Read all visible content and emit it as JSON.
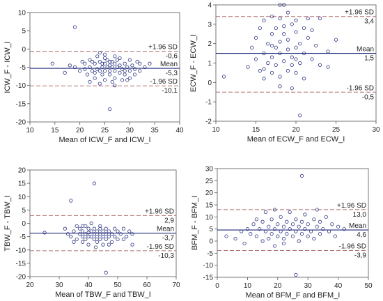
{
  "chart_data": [
    {
      "type": "scatter",
      "xlabel": "Mean of ICW_F and ICW_I",
      "ylabel": "ICW_F - ICW_I",
      "xlim": [
        10,
        40
      ],
      "ylim": [
        -20,
        10
      ],
      "xticks": [
        10,
        15,
        20,
        25,
        30,
        35,
        40
      ],
      "yticks": [
        -20,
        -15,
        -10,
        -5,
        0,
        5,
        10
      ],
      "lines": {
        "upper": -0.6,
        "mean": -5.3,
        "lower": -10.1
      },
      "line_labels": {
        "upper": "+1.96 SD",
        "upper_value": "-0,6",
        "mean": "Mean",
        "mean_value": "-5,3",
        "lower": "-1.96 SD",
        "lower_value": "-10,1"
      },
      "points": [
        [
          19,
          6
        ],
        [
          14.5,
          -4
        ],
        [
          26,
          -16.5
        ],
        [
          17,
          -6.5
        ],
        [
          18,
          -4.5
        ],
        [
          19,
          -5
        ],
        [
          20,
          -6
        ],
        [
          21,
          -4
        ],
        [
          21.5,
          -7
        ],
        [
          22,
          -5
        ],
        [
          22,
          -3
        ],
        [
          22.5,
          -6
        ],
        [
          23,
          -8
        ],
        [
          23,
          -4
        ],
        [
          23.5,
          -5.5
        ],
        [
          23.5,
          -2
        ],
        [
          24,
          -6
        ],
        [
          24,
          -3.5
        ],
        [
          24,
          -1
        ],
        [
          24.5,
          -5
        ],
        [
          24.5,
          -7
        ],
        [
          25,
          -4
        ],
        [
          25,
          -6
        ],
        [
          25,
          -8.5
        ],
        [
          25,
          -2.5
        ],
        [
          25.5,
          -5
        ],
        [
          25.5,
          -3
        ],
        [
          26,
          -6
        ],
        [
          26,
          -4.5
        ],
        [
          26,
          -7
        ],
        [
          26.5,
          -5
        ],
        [
          26.5,
          -3.5
        ],
        [
          27,
          -6
        ],
        [
          27,
          -4
        ],
        [
          27,
          -8
        ],
        [
          27,
          -10
        ],
        [
          27.5,
          -5
        ],
        [
          27.5,
          -3
        ],
        [
          28,
          -6.5
        ],
        [
          28,
          -4.5
        ],
        [
          28,
          -2.5
        ],
        [
          28.5,
          -5.5
        ],
        [
          29,
          -7
        ],
        [
          29,
          -4
        ],
        [
          29,
          -6
        ],
        [
          29.5,
          -5
        ],
        [
          30,
          -3
        ],
        [
          30,
          -6
        ],
        [
          30,
          -8
        ],
        [
          30.5,
          -4.5
        ],
        [
          31,
          -5.5
        ],
        [
          31,
          -7
        ],
        [
          32,
          -4
        ],
        [
          32,
          -6
        ],
        [
          33,
          -5
        ],
        [
          34,
          -4
        ],
        [
          22,
          -9
        ],
        [
          24,
          -9.5
        ],
        [
          26,
          -3.5
        ],
        [
          27,
          -2
        ],
        [
          28.5,
          -8.5
        ],
        [
          25,
          -1.5
        ],
        [
          23,
          -6.5
        ],
        [
          21,
          -5.5
        ],
        [
          20.5,
          -3.5
        ],
        [
          31.5,
          -3.5
        ],
        [
          29.5,
          -8.5
        ],
        [
          26.5,
          -9
        ],
        [
          24.5,
          -4
        ],
        [
          22.5,
          -3.5
        ]
      ]
    },
    {
      "type": "scatter",
      "xlabel": "Mean of ECW_F and ECW_I",
      "ylabel": "ECW_F - ECW_I",
      "xlim": [
        10,
        30
      ],
      "ylim": [
        -2,
        4
      ],
      "xticks": [
        10,
        15,
        20,
        25,
        30
      ],
      "yticks": [
        -2,
        -1,
        0,
        1,
        2,
        3,
        4
      ],
      "lines": {
        "upper": 3.4,
        "mean": 1.5,
        "lower": -0.5
      },
      "line_labels": {
        "upper": "+1.96 SD",
        "upper_value": "3,4",
        "mean": "Mean",
        "mean_value": "1,5",
        "lower": "-1.96 SD",
        "lower_value": "-0,5"
      },
      "points": [
        [
          11,
          0.3
        ],
        [
          14,
          0.8
        ],
        [
          14.5,
          1.8
        ],
        [
          15,
          1.2
        ],
        [
          15,
          2.3
        ],
        [
          15.5,
          0.6
        ],
        [
          15.5,
          2.8
        ],
        [
          16,
          1.5
        ],
        [
          16,
          3.2
        ],
        [
          16,
          0.2
        ],
        [
          16.5,
          2
        ],
        [
          16.5,
          1
        ],
        [
          17,
          2.5
        ],
        [
          17,
          1.3
        ],
        [
          17,
          0.5
        ],
        [
          17,
          3.4
        ],
        [
          17.5,
          1.8
        ],
        [
          17.5,
          2.8
        ],
        [
          17.5,
          0.9
        ],
        [
          18,
          3.3
        ],
        [
          18,
          2.1
        ],
        [
          18,
          1.5
        ],
        [
          18,
          0.3
        ],
        [
          18,
          -0.2
        ],
        [
          18.5,
          4
        ],
        [
          18.5,
          2.5
        ],
        [
          18.5,
          1.1
        ],
        [
          18.5,
          2.9
        ],
        [
          19,
          3.6
        ],
        [
          19,
          1.7
        ],
        [
          19,
          0.6
        ],
        [
          19,
          2.2
        ],
        [
          19.5,
          3
        ],
        [
          19.5,
          1.3
        ],
        [
          19.5,
          0.9
        ],
        [
          19.5,
          -0.3
        ],
        [
          20,
          2.6
        ],
        [
          20,
          1.8
        ],
        [
          20,
          0.5
        ],
        [
          20,
          3.2
        ],
        [
          20.5,
          2
        ],
        [
          20.5,
          1
        ],
        [
          20.5,
          -1.7
        ],
        [
          21,
          2.8
        ],
        [
          21,
          1.5
        ],
        [
          21,
          0.2
        ],
        [
          21.5,
          3.3
        ],
        [
          21.5,
          2.3
        ],
        [
          22,
          1.2
        ],
        [
          22,
          2.7
        ],
        [
          22.5,
          1.9
        ],
        [
          23,
          3.3
        ],
        [
          23,
          0.9
        ],
        [
          24,
          1.6
        ],
        [
          24,
          0.8
        ],
        [
          25,
          2.2
        ],
        [
          18,
          4
        ],
        [
          17,
          1.9
        ],
        [
          16,
          0.7
        ],
        [
          20,
          1.2
        ]
      ]
    },
    {
      "type": "scatter",
      "xlabel": "Mean of TBW_F and TBW_I",
      "ylabel": "TBW_F - TBW_I",
      "xlim": [
        20,
        70
      ],
      "ylim": [
        -20,
        20
      ],
      "xticks": [
        20,
        30,
        40,
        50,
        60,
        70
      ],
      "yticks": [
        -20,
        -15,
        -10,
        -5,
        0,
        5,
        10,
        15,
        20
      ],
      "lines": {
        "upper": 2.9,
        "mean": -3.7,
        "lower": -10.3
      },
      "line_labels": {
        "upper": "+1.96 SD",
        "upper_value": "2,9",
        "mean": "Mean",
        "mean_value": "-3,7",
        "lower": "-1.96 SD",
        "lower_value": "-10,3"
      },
      "points": [
        [
          34,
          8.5
        ],
        [
          42,
          15
        ],
        [
          46,
          -18.5
        ],
        [
          25,
          -3.5
        ],
        [
          32,
          -2
        ],
        [
          33,
          -4
        ],
        [
          34,
          -5
        ],
        [
          35,
          -3
        ],
        [
          36,
          -1
        ],
        [
          36,
          -6
        ],
        [
          37,
          -4
        ],
        [
          37,
          -2
        ],
        [
          38,
          -3
        ],
        [
          38,
          -5
        ],
        [
          38,
          -7
        ],
        [
          39,
          -1
        ],
        [
          39,
          -4
        ],
        [
          39,
          -6
        ],
        [
          40,
          -2
        ],
        [
          40,
          -3.5
        ],
        [
          40,
          -8
        ],
        [
          41,
          -5
        ],
        [
          41,
          -3
        ],
        [
          41,
          0
        ],
        [
          42,
          -4
        ],
        [
          42,
          -6
        ],
        [
          42,
          -2
        ],
        [
          42.5,
          -9
        ],
        [
          43,
          -3
        ],
        [
          43,
          -5
        ],
        [
          43,
          -7
        ],
        [
          44,
          -4
        ],
        [
          44,
          -2
        ],
        [
          44,
          -6
        ],
        [
          45,
          -3
        ],
        [
          45,
          -5
        ],
        [
          45,
          -8
        ],
        [
          46,
          -4
        ],
        [
          46,
          -2
        ],
        [
          46,
          -6
        ],
        [
          47,
          -3
        ],
        [
          47,
          -5
        ],
        [
          48,
          -4
        ],
        [
          48,
          -7
        ],
        [
          49,
          -2
        ],
        [
          49,
          -5
        ],
        [
          50,
          -3
        ],
        [
          50,
          -6
        ],
        [
          51,
          -4
        ],
        [
          52,
          -2
        ],
        [
          52,
          -6
        ],
        [
          53,
          -5
        ],
        [
          54,
          -3
        ],
        [
          55,
          -8
        ],
        [
          55,
          -4
        ],
        [
          35,
          -7
        ],
        [
          38,
          -1
        ],
        [
          40,
          -5
        ],
        [
          44,
          -1
        ],
        [
          47,
          -8
        ]
      ]
    },
    {
      "type": "scatter",
      "xlabel": "Mean of BFM_F and BFM_I",
      "ylabel": "BFM_F - BFM_I",
      "xlim": [
        0,
        50
      ],
      "ylim": [
        -15,
        30
      ],
      "xticks": [
        0,
        10,
        20,
        30,
        40,
        50
      ],
      "yticks": [
        -15,
        -10,
        -5,
        0,
        5,
        10,
        15,
        20,
        25,
        30
      ],
      "lines": {
        "upper": 13.0,
        "mean": 4.6,
        "lower": -3.9
      },
      "line_labels": {
        "upper": "+1.96 SD",
        "upper_value": "13,0",
        "mean": "Mean",
        "mean_value": "4,6",
        "lower": "-1.96 SD",
        "lower_value": "-3,9"
      },
      "points": [
        [
          28,
          27
        ],
        [
          26,
          -14
        ],
        [
          3,
          2
        ],
        [
          6,
          1
        ],
        [
          8,
          4
        ],
        [
          9,
          -1
        ],
        [
          10,
          5
        ],
        [
          11,
          3
        ],
        [
          12,
          7
        ],
        [
          13,
          2
        ],
        [
          14,
          5
        ],
        [
          15,
          0
        ],
        [
          15,
          8
        ],
        [
          16,
          4
        ],
        [
          17,
          6
        ],
        [
          17,
          1
        ],
        [
          18,
          9
        ],
        [
          18,
          3
        ],
        [
          19,
          5
        ],
        [
          19,
          -2
        ],
        [
          20,
          7
        ],
        [
          20,
          2
        ],
        [
          21,
          4
        ],
        [
          21,
          10
        ],
        [
          22,
          6
        ],
        [
          22,
          1
        ],
        [
          23,
          8
        ],
        [
          23,
          3
        ],
        [
          24,
          5
        ],
        [
          24,
          12
        ],
        [
          25,
          2
        ],
        [
          25,
          7
        ],
        [
          26,
          4
        ],
        [
          26,
          9
        ],
        [
          27,
          6
        ],
        [
          27,
          0
        ],
        [
          28,
          3
        ],
        [
          28,
          8
        ],
        [
          29,
          5
        ],
        [
          29,
          11
        ],
        [
          30,
          2
        ],
        [
          30,
          7
        ],
        [
          31,
          4
        ],
        [
          32,
          9
        ],
        [
          32,
          1
        ],
        [
          33,
          6
        ],
        [
          34,
          3
        ],
        [
          34,
          8
        ],
        [
          35,
          5
        ],
        [
          36,
          10
        ],
        [
          37,
          4
        ],
        [
          38,
          7
        ],
        [
          39,
          2
        ],
        [
          40,
          6
        ],
        [
          42,
          5
        ],
        [
          16,
          12
        ],
        [
          19,
          13
        ],
        [
          22,
          -1
        ],
        [
          13,
          9
        ],
        [
          33,
          13
        ]
      ]
    }
  ]
}
